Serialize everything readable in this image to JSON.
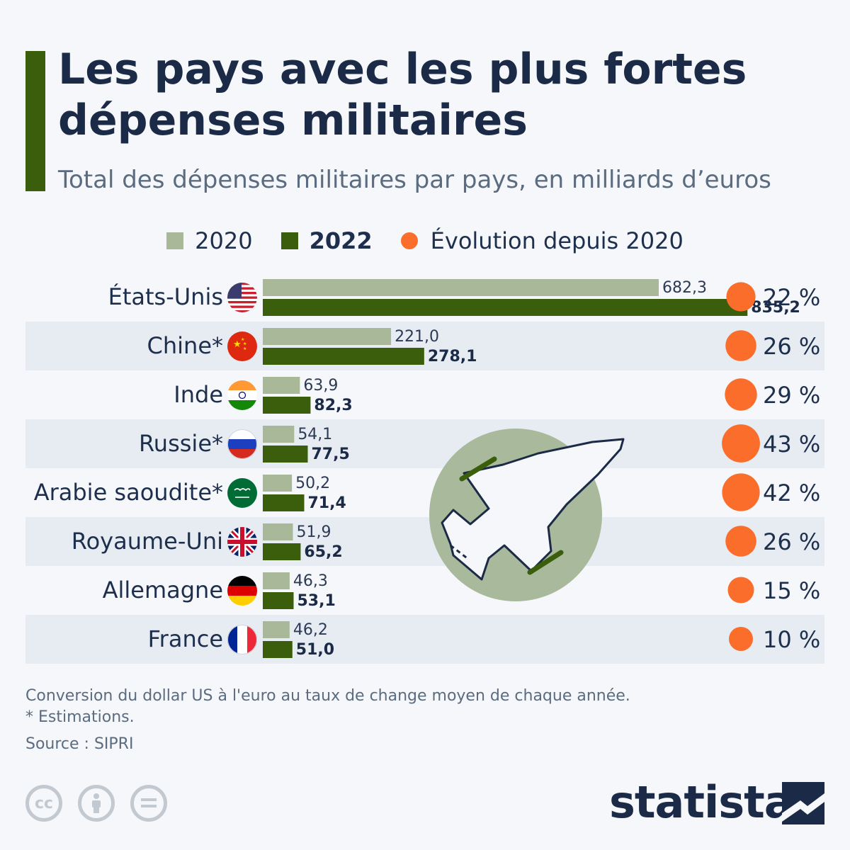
{
  "title": "Les pays avec les plus fortes dépenses militaires",
  "subtitle": "Total des dépenses militaires par pays, en milliards d’euros",
  "legend": {
    "series_2020": "2020",
    "series_2022": "2022",
    "evolution": "Évolution depuis 2020"
  },
  "colors": {
    "series_2020": "#a8b898",
    "series_2022": "#3b5e0c",
    "evolution": "#fb6d2b",
    "accent": "#3b5e0c"
  },
  "chart_data": {
    "type": "bar",
    "orientation": "horizontal",
    "title": "Les pays avec les plus fortes dépenses militaires",
    "subtitle": "Total des dépenses militaires par pays, en milliards d’euros",
    "unit": "milliards d’euros",
    "categories": [
      "États-Unis",
      "Chine*",
      "Inde",
      "Russie*",
      "Arabie saoudite*",
      "Royaume-Uni",
      "Allemagne",
      "France"
    ],
    "series": [
      {
        "name": "2020",
        "values": [
          682.3,
          221.0,
          63.9,
          54.1,
          50.2,
          51.9,
          46.3,
          46.2
        ],
        "labels": [
          "682,3",
          "221,0",
          "63,9",
          "54,1",
          "50,2",
          "51,9",
          "46,3",
          "46,2"
        ]
      },
      {
        "name": "2022",
        "values": [
          835.2,
          278.1,
          82.3,
          77.5,
          71.4,
          65.2,
          53.1,
          51.0
        ],
        "labels": [
          "835,2",
          "278,1",
          "82,3",
          "77,5",
          "71,4",
          "65,2",
          "53,1",
          "51,0"
        ]
      }
    ],
    "evolution": {
      "name": "Évolution depuis 2020",
      "values": [
        22,
        26,
        29,
        43,
        42,
        26,
        15,
        10
      ],
      "labels": [
        "22 %",
        "26 %",
        "29 %",
        "43 %",
        "42 %",
        "26 %",
        "15 %",
        "10 %"
      ]
    },
    "xlim": [
      0,
      850
    ],
    "legend_position": "top-center"
  },
  "flags": [
    "us-flag-icon",
    "china-flag-icon",
    "india-flag-icon",
    "russia-flag-icon",
    "saudi-flag-icon",
    "uk-flag-icon",
    "germany-flag-icon",
    "france-flag-icon"
  ],
  "notes": {
    "conversion": "Conversion du dollar US à l'euro au taux de change moyen de chaque année.",
    "estimates": "* Estimations.",
    "source": "Source : SIPRI"
  },
  "license_icons": [
    "cc-icon",
    "attribution-icon",
    "no-derivatives-icon"
  ],
  "cc_text": "cc",
  "brand": "statista"
}
